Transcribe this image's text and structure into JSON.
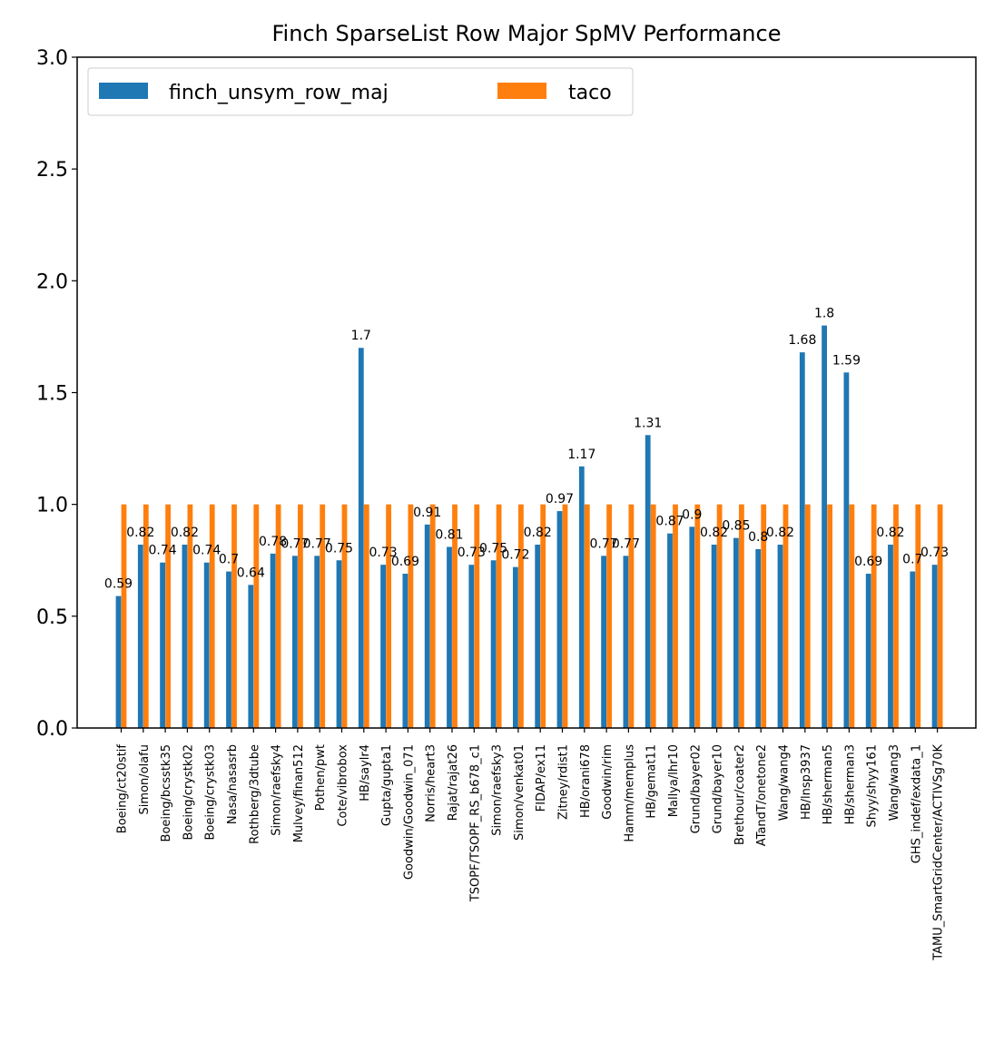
{
  "chart_data": {
    "type": "bar",
    "title": "Finch SparseList Row Major SpMV Performance",
    "xlabel": "",
    "ylabel": "",
    "ylim": [
      0,
      3.0
    ],
    "yticks": [
      "0.0",
      "0.5",
      "1.0",
      "1.5",
      "2.0",
      "2.5",
      "3.0"
    ],
    "grid": false,
    "legend_position": "top-left",
    "categories": [
      "Boeing/ct20stif",
      "Simon/olafu",
      "Boeing/bcsstk35",
      "Boeing/crystk02",
      "Boeing/crystk03",
      "Nasa/nasasrb",
      "Rothberg/3dtube",
      "Simon/raefsky4",
      "Mulvey/finan512",
      "Pothen/pwt",
      "Cote/vibrobox",
      "HB/saylr4",
      "Gupta/gupta1",
      "Goodwin/Goodwin_071",
      "Norris/heart3",
      "Rajat/rajat26",
      "TSOPF/TSOPF_RS_b678_c1",
      "Simon/raefsky3",
      "Simon/venkat01",
      "FIDAP/ex11",
      "Zitney/rdist1",
      "HB/orani678",
      "Goodwin/rim",
      "Hamm/memplus",
      "HB/gemat11",
      "Mallya/lhr10",
      "Grund/bayer02",
      "Grund/bayer10",
      "Brethour/coater2",
      "ATandT/onetone2",
      "Wang/wang4",
      "HB/lnsp3937",
      "HB/sherman5",
      "HB/sherman3",
      "Shyy/shyy161",
      "Wang/wang3",
      "GHS_indef/exdata_1",
      "TAMU_SmartGridCenter/ACTIVSg70K"
    ],
    "series": [
      {
        "name": "finch_unsym_row_maj",
        "color": "#1f77b4",
        "values": [
          0.59,
          0.82,
          0.74,
          0.82,
          0.74,
          0.7,
          0.64,
          0.78,
          0.77,
          0.77,
          0.75,
          1.7,
          0.73,
          0.69,
          0.91,
          0.81,
          0.73,
          0.75,
          0.72,
          0.82,
          0.97,
          1.17,
          0.77,
          0.77,
          1.31,
          0.87,
          0.9,
          0.82,
          0.85,
          0.8,
          0.82,
          1.68,
          1.8,
          1.59,
          0.69,
          0.82,
          0.7,
          0.73
        ]
      },
      {
        "name": "taco",
        "color": "#ff7f0e",
        "values": [
          1,
          1,
          1,
          1,
          1,
          1,
          1,
          1,
          1,
          1,
          1,
          1,
          1,
          1,
          1,
          1,
          1,
          1,
          1,
          1,
          1,
          1,
          1,
          1,
          1,
          1,
          1,
          1,
          1,
          1,
          1,
          1,
          1,
          1,
          1,
          1,
          1,
          1
        ]
      }
    ],
    "data_labels": [
      "0.59",
      "0.82",
      "0.74",
      "0.82",
      "0.74",
      "0.7",
      "0.64",
      "0.78",
      "0.77",
      "0.77",
      "0.75",
      "1.7",
      "0.73",
      "0.69",
      "0.91",
      "0.81",
      "0.73",
      "0.75",
      "0.72",
      "0.82",
      "0.97",
      "1.17",
      "0.77",
      "0.77",
      "1.31",
      "0.87",
      "0.9",
      "0.82",
      "0.85",
      "0.8",
      "0.82",
      "1.68",
      "1.8",
      "1.59",
      "0.69",
      "0.82",
      "0.7",
      "0.73"
    ]
  }
}
